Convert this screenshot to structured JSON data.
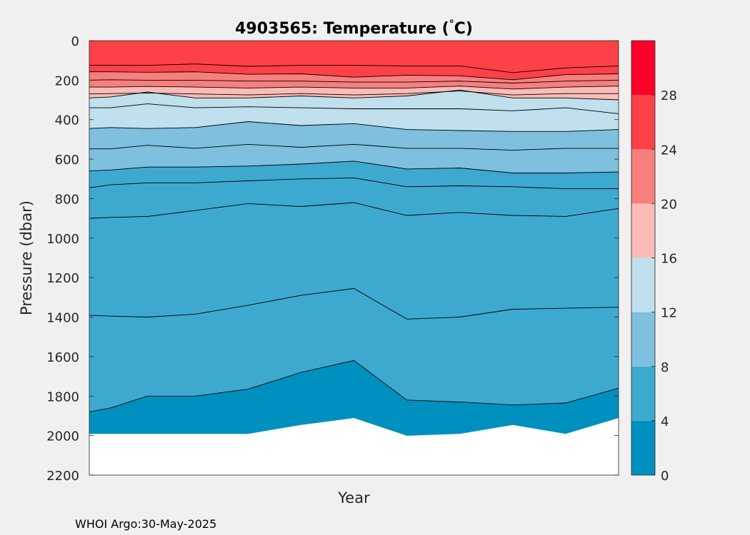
{
  "chart_data": {
    "type": "contour",
    "title": "4903565:  Temperature (",
    "title_degree": "°",
    "title_unit": "C)",
    "xlabel": "Year",
    "ylabel": "Pressure (dbar)",
    "y_reversed": true,
    "ylim": [
      0,
      2200
    ],
    "y_ticks": [
      0,
      200,
      400,
      600,
      800,
      1000,
      1200,
      1400,
      1600,
      1800,
      2000,
      2200
    ],
    "x_ticks": [],
    "x_profile_positions": [
      0,
      0.04,
      0.11,
      0.2,
      0.3,
      0.4,
      0.5,
      0.6,
      0.7,
      0.8,
      0.9,
      1.0
    ],
    "contour_levels": [
      2,
      4,
      6,
      8,
      10,
      12,
      14,
      16,
      18,
      20,
      22,
      24,
      26
    ],
    "isotherms": [
      {
        "level": 26,
        "depths": [
          125,
          125,
          125,
          118,
          130,
          125,
          125,
          128,
          128,
          162,
          138,
          128
        ]
      },
      {
        "level": 24,
        "depths": [
          158,
          158,
          160,
          158,
          170,
          168,
          185,
          175,
          178,
          198,
          172,
          168
        ]
      },
      {
        "level": 22,
        "depths": [
          200,
          198,
          200,
          200,
          205,
          205,
          210,
          210,
          205,
          215,
          205,
          200
        ]
      },
      {
        "level": 20,
        "depths": [
          235,
          235,
          232,
          235,
          240,
          235,
          240,
          240,
          230,
          245,
          235,
          230
        ]
      },
      {
        "level": 18,
        "depths": [
          270,
          268,
          265,
          270,
          275,
          268,
          275,
          268,
          255,
          275,
          268,
          268
        ]
      },
      {
        "level": 16,
        "depths": [
          290,
          285,
          260,
          290,
          290,
          280,
          290,
          280,
          250,
          290,
          290,
          300
        ]
      },
      {
        "level": 14,
        "depths": [
          340,
          340,
          320,
          340,
          335,
          340,
          345,
          345,
          345,
          355,
          340,
          370
        ]
      },
      {
        "level": 12,
        "depths": [
          445,
          440,
          445,
          440,
          410,
          430,
          420,
          450,
          455,
          460,
          460,
          450
        ]
      },
      {
        "level": 10,
        "depths": [
          548,
          548,
          530,
          545,
          525,
          540,
          525,
          545,
          545,
          555,
          545,
          545
        ]
      },
      {
        "level": 8,
        "depths": [
          660,
          655,
          640,
          640,
          635,
          625,
          610,
          650,
          645,
          670,
          670,
          665
        ]
      },
      {
        "level": 7,
        "depths": [
          745,
          730,
          720,
          720,
          710,
          700,
          695,
          740,
          735,
          740,
          750,
          750
        ]
      },
      {
        "level": 6,
        "depths": [
          900,
          895,
          890,
          860,
          825,
          840,
          820,
          885,
          870,
          885,
          890,
          850
        ]
      },
      {
        "level": 5,
        "depths": [
          1390,
          1395,
          1400,
          1385,
          1340,
          1290,
          1255,
          1410,
          1400,
          1360,
          1355,
          1350
        ]
      },
      {
        "level": 4,
        "depths": [
          1880,
          1860,
          1800,
          1800,
          1765,
          1680,
          1620,
          1820,
          1830,
          1845,
          1835,
          1760
        ]
      }
    ],
    "profile_max_depth": [
      1990,
      1990,
      1990,
      1990,
      1990,
      1945,
      1910,
      2000,
      1990,
      1945,
      1990,
      1910
    ],
    "colorbar": {
      "ticks": [
        0,
        4,
        8,
        12,
        16,
        20,
        24,
        28
      ],
      "range": [
        0,
        32
      ],
      "bands": [
        {
          "from": 0,
          "to": 4,
          "color": "#0090bf"
        },
        {
          "from": 4,
          "to": 8,
          "color": "#3ea9cf"
        },
        {
          "from": 8,
          "to": 12,
          "color": "#7ec0de"
        },
        {
          "from": 12,
          "to": 16,
          "color": "#bfe0ec"
        },
        {
          "from": 16,
          "to": 20,
          "color": "#fbbcb8"
        },
        {
          "from": 20,
          "to": 24,
          "color": "#f77f7d"
        },
        {
          "from": 24,
          "to": 28,
          "color": "#fe4048"
        },
        {
          "from": 28,
          "to": 32,
          "color": "#fe0029"
        }
      ]
    }
  },
  "footer": "WHOI Argo:30-May-2025"
}
